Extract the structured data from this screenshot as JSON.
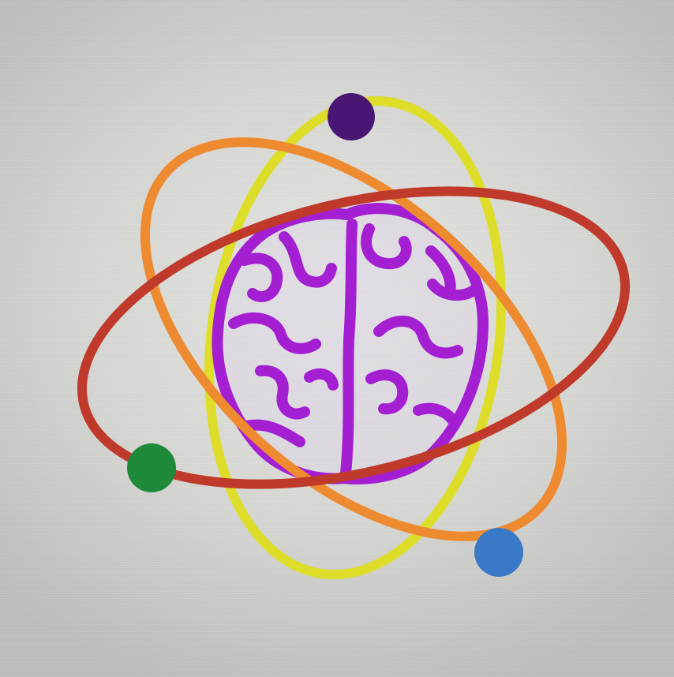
{
  "emblem": {
    "icon": "atom-brain-icon",
    "colors": {
      "background": "#dcdcd9",
      "orbit_yellow": "#dede2a",
      "orbit_orange": "#ee8a30",
      "orbit_red": "#bf3a2a",
      "brain_stroke": "#a41fd1",
      "electron_purple": "#4a1674",
      "electron_green": "#1e8a3a",
      "electron_blue": "#3a78c8"
    }
  }
}
